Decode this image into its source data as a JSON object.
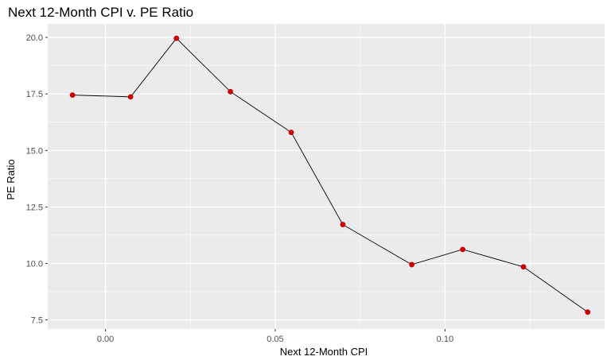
{
  "chart_data": {
    "type": "line",
    "title": "Next 12-Month CPI v. PE Ratio",
    "xlabel": "Next 12-Month CPI",
    "ylabel": "PE Ratio",
    "xlim": [
      -0.017,
      0.147
    ],
    "ylim": [
      7.1,
      20.6
    ],
    "x_ticks": [
      0.0,
      0.05,
      0.1
    ],
    "x_tick_labels": [
      "0.00",
      "0.05",
      "0.10"
    ],
    "y_ticks": [
      7.5,
      10.0,
      12.5,
      15.0,
      17.5,
      20.0
    ],
    "y_tick_labels": [
      "7.5",
      "10.0",
      "12.5",
      "15.0",
      "17.5",
      "20.0"
    ],
    "grid": true,
    "panel_background": "#ebebeb",
    "grid_color": "#ffffff",
    "line_color": "#000000",
    "point_color": "#cc0000",
    "series": [
      {
        "x": [
          -0.0097,
          0.0074,
          0.0209,
          0.0368,
          0.0547,
          0.0699,
          0.0902,
          0.1052,
          0.1231,
          0.142
        ],
        "y": [
          17.45,
          17.37,
          19.96,
          17.6,
          15.8,
          11.72,
          9.95,
          10.62,
          9.85,
          7.85
        ]
      }
    ]
  }
}
